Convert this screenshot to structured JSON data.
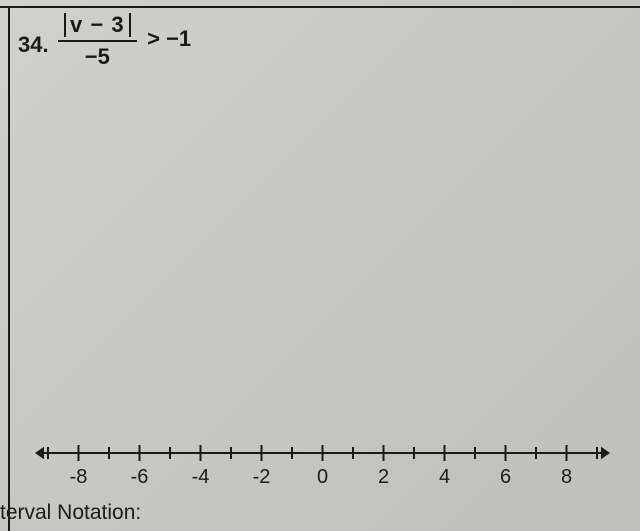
{
  "problem": {
    "number": "34.",
    "numerator_var": "v",
    "numerator_op": "−",
    "numerator_const": "3",
    "denominator": "−5",
    "relation": ">",
    "rhs": "−1"
  },
  "numberline": {
    "min": -9,
    "max": 9,
    "tick_step": 1,
    "label_step": 2,
    "labels": [
      -8,
      -6,
      -4,
      -2,
      0,
      2,
      4,
      6,
      8
    ],
    "axis_color": "#1a1a1a",
    "tick_height_minor": 8,
    "tick_height_major": 12,
    "label_fontsize": 20,
    "stroke_width": 2,
    "arrow_size": 9
  },
  "footer": {
    "label": "terval Notation:"
  },
  "colors": {
    "text": "#1a1a1a",
    "paper": "#c8c9c3"
  }
}
